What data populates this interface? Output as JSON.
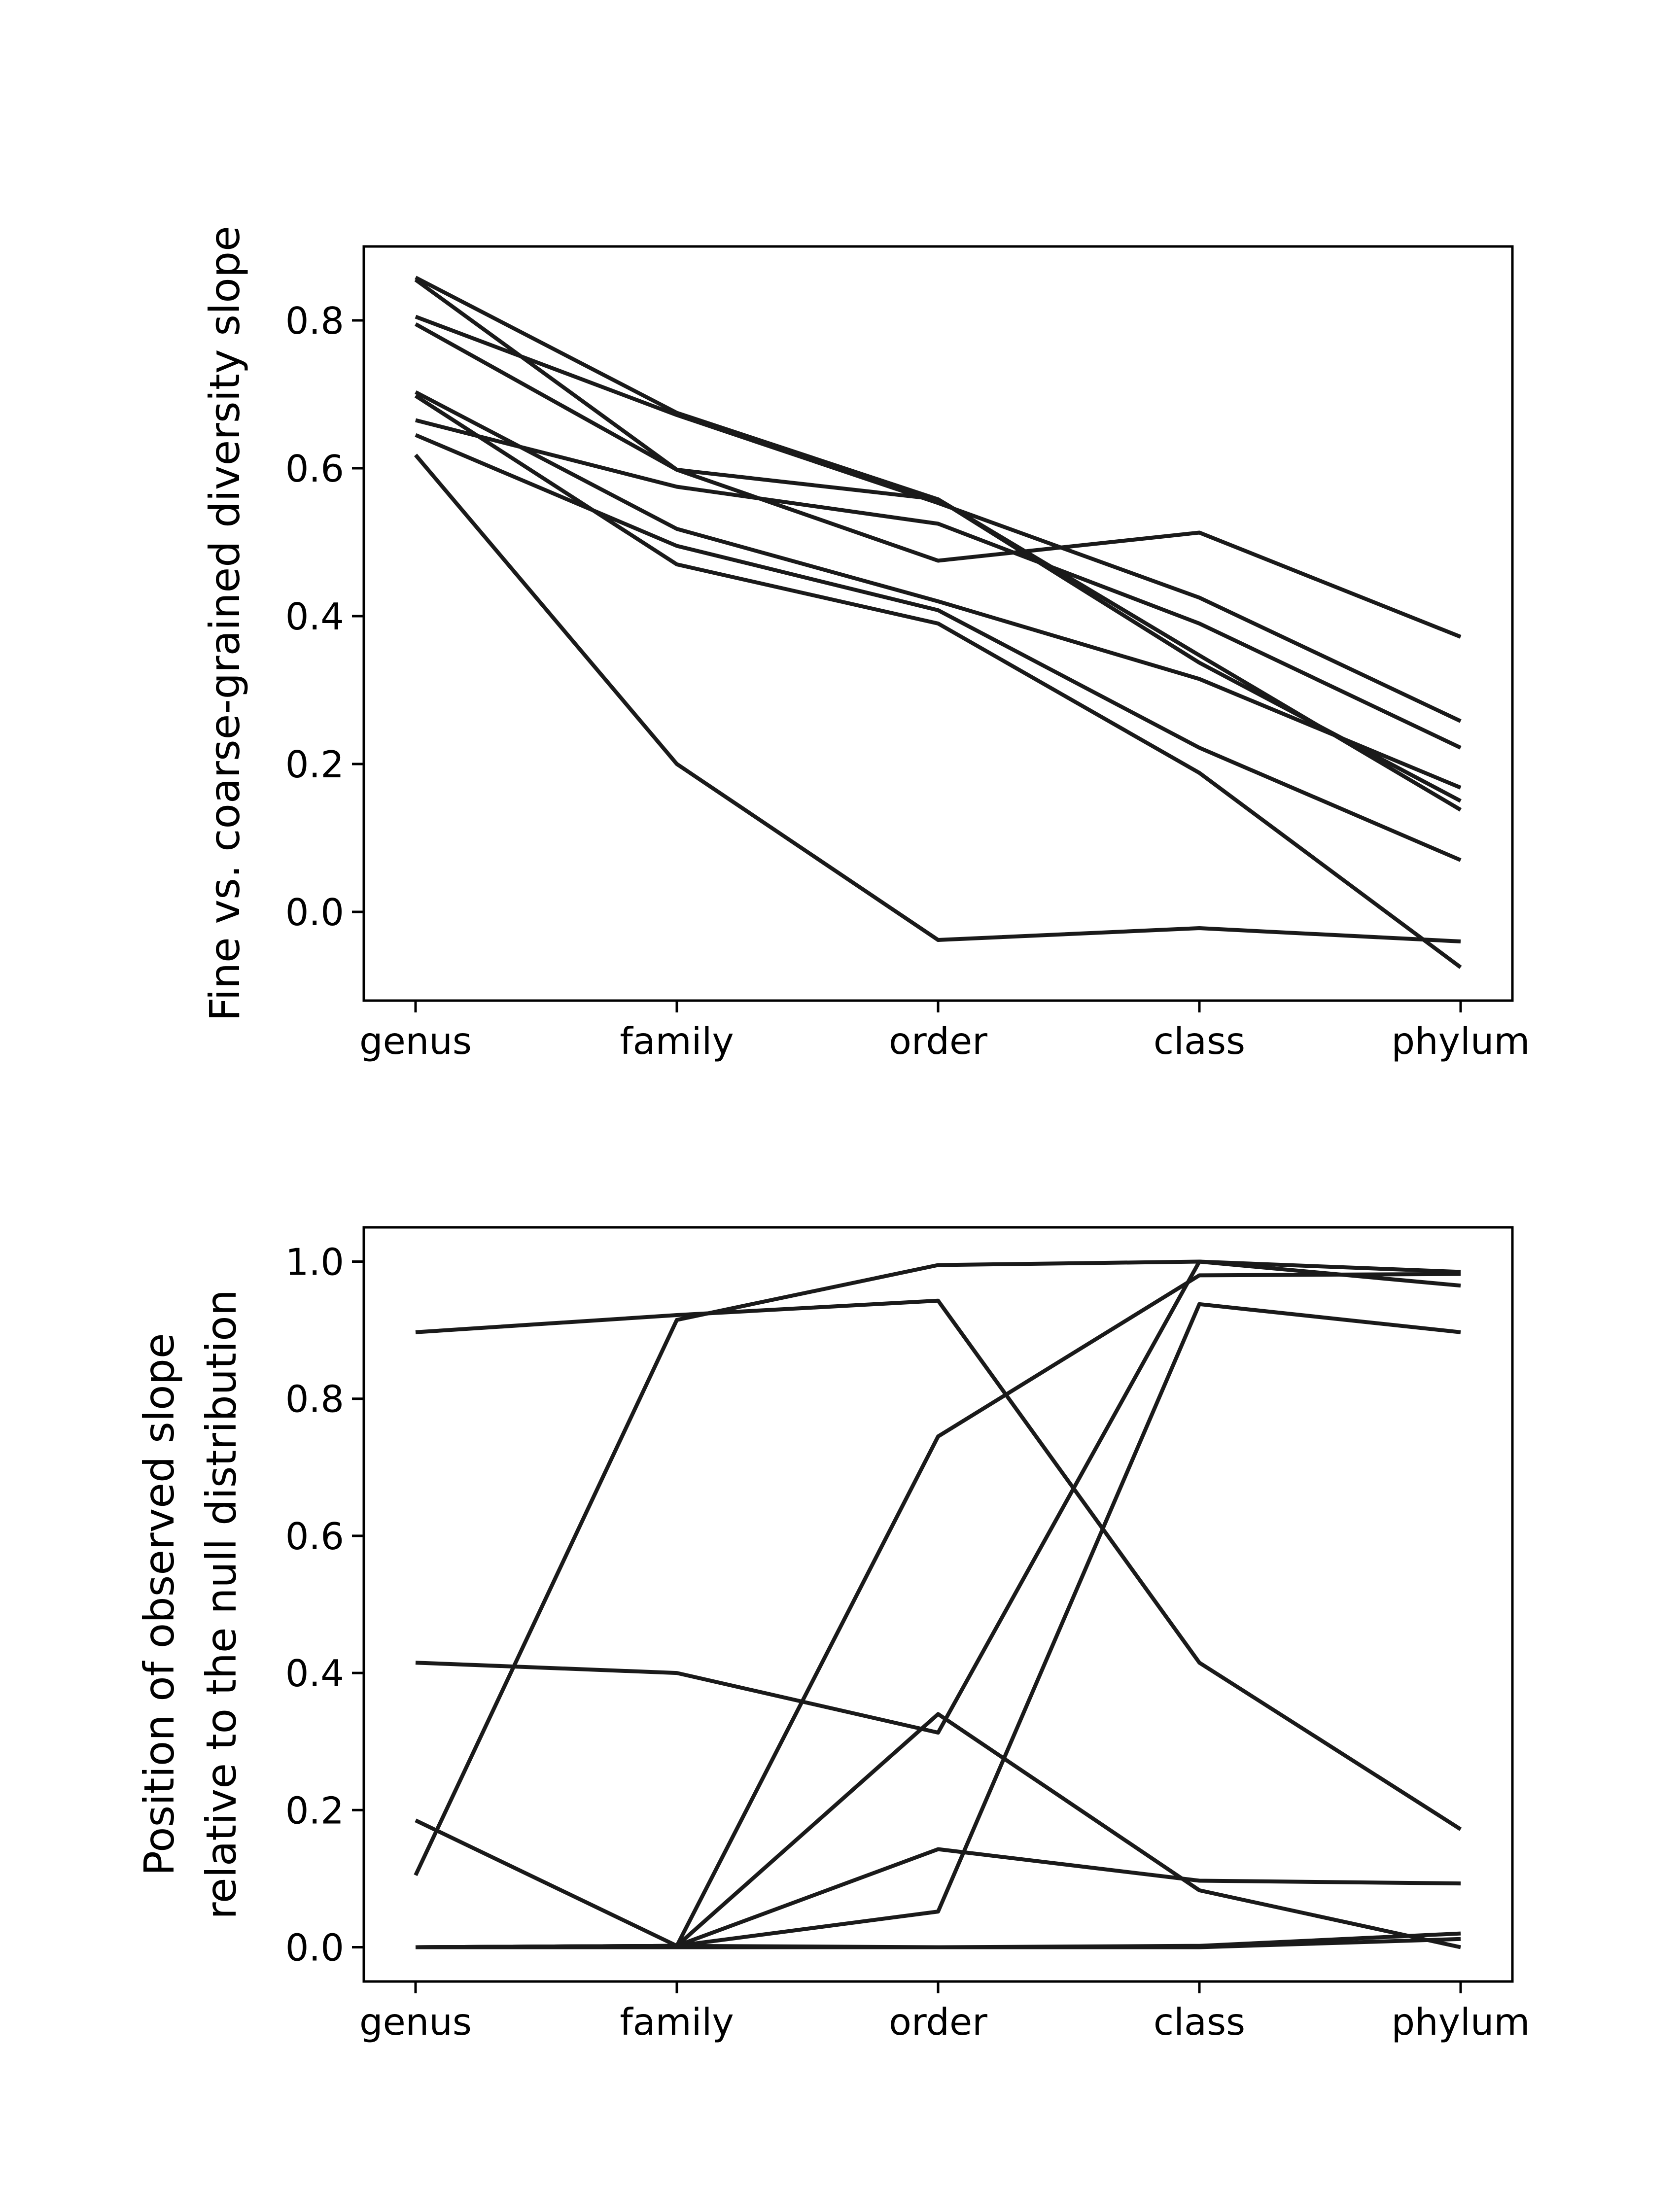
{
  "chart_data": [
    {
      "type": "line",
      "categories": [
        "genus",
        "family",
        "order",
        "class",
        "phylum"
      ],
      "ylabel": [
        "Fine vs. coarse-grained diversity slope"
      ],
      "ylim": [
        -0.12,
        0.9
      ],
      "yticks": [
        0.0,
        0.2,
        0.4,
        0.6,
        0.8
      ],
      "ytick_labels": [
        "0.0",
        "0.2",
        "0.4",
        "0.6",
        "0.8"
      ],
      "grid": false,
      "line_color": "#1a1a1a",
      "series": [
        {
          "values": [
            0.858,
            0.675,
            0.558,
            0.337,
            0.15
          ]
        },
        {
          "values": [
            0.855,
            0.598,
            0.558,
            0.347,
            0.138
          ]
        },
        {
          "values": [
            0.805,
            0.672,
            0.553,
            0.425,
            0.258
          ]
        },
        {
          "values": [
            0.795,
            0.598,
            0.475,
            0.513,
            0.372
          ]
        },
        {
          "values": [
            0.703,
            0.518,
            0.42,
            0.315,
            0.168
          ]
        },
        {
          "values": [
            0.698,
            0.47,
            0.39,
            0.188,
            -0.075
          ]
        },
        {
          "values": [
            0.665,
            0.575,
            0.525,
            0.39,
            0.222
          ]
        },
        {
          "values": [
            0.645,
            0.495,
            0.408,
            0.222,
            0.07
          ]
        },
        {
          "values": [
            0.618,
            0.2,
            -0.038,
            -0.022,
            -0.04
          ]
        }
      ]
    },
    {
      "type": "line",
      "categories": [
        "genus",
        "family",
        "order",
        "class",
        "phylum"
      ],
      "ylabel": [
        "Position of observed slope",
        "relative to the null distribution"
      ],
      "ylim": [
        -0.05,
        1.05
      ],
      "yticks": [
        0.0,
        0.2,
        0.4,
        0.6,
        0.8,
        1.0
      ],
      "ytick_labels": [
        "0.0",
        "0.2",
        "0.4",
        "0.6",
        "0.8",
        "1.0"
      ],
      "grid": false,
      "line_color": "#1a1a1a",
      "series": [
        {
          "values": [
            0.897,
            0.922,
            0.943,
            0.415,
            0.172
          ]
        },
        {
          "values": [
            0.105,
            0.915,
            0.995,
            1.0,
            0.965
          ]
        },
        {
          "values": [
            0.415,
            0.4,
            0.313,
            1.0,
            0.985
          ]
        },
        {
          "values": [
            0.185,
            0.002,
            0.745,
            0.98,
            0.982
          ]
        },
        {
          "values": [
            0.0,
            0.002,
            0.052,
            0.938,
            0.897
          ]
        },
        {
          "values": [
            0.0,
            0.002,
            0.34,
            0.083,
            0.0
          ]
        },
        {
          "values": [
            0.0,
            0.002,
            0.143,
            0.097,
            0.093
          ]
        },
        {
          "values": [
            0.0,
            0.002,
            0.0,
            0.002,
            0.02
          ]
        },
        {
          "values": [
            0.0,
            0.0,
            0.0,
            0.0,
            0.012
          ]
        }
      ]
    }
  ]
}
